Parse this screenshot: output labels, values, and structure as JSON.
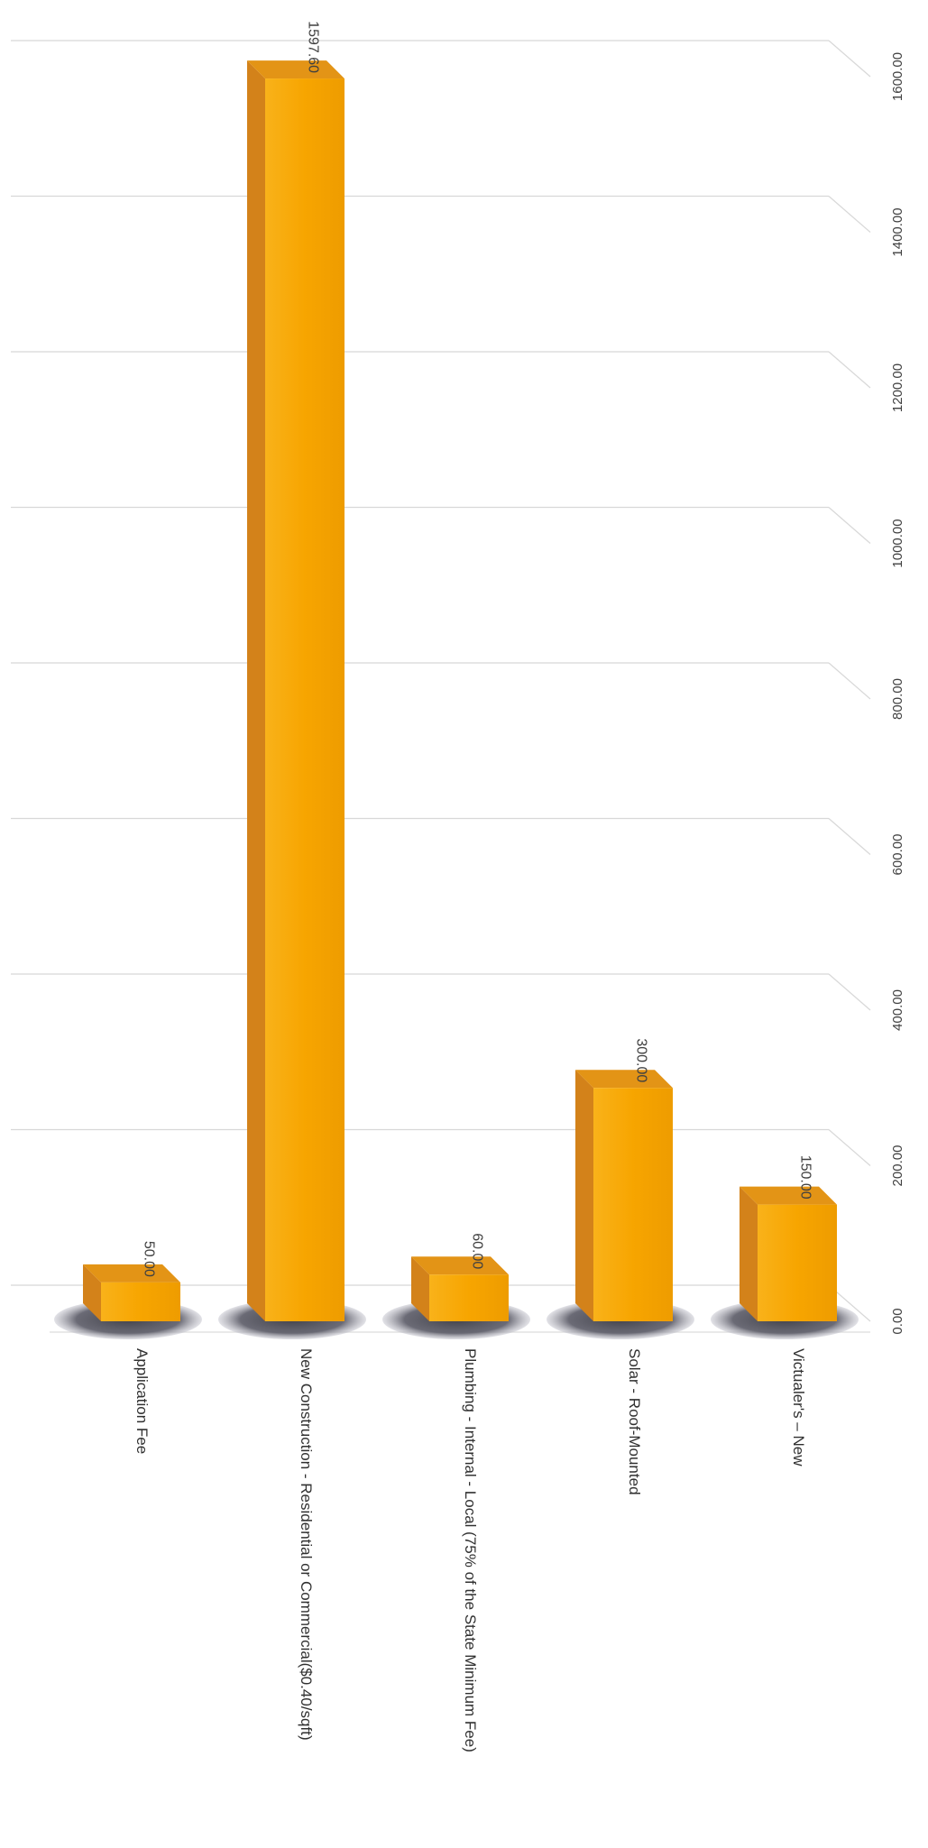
{
  "chart_data": {
    "type": "bar",
    "title": "",
    "xlabel": "",
    "ylabel": "",
    "categories": [
      "Application Fee",
      "New Construction - Residential or Commercial($0.40/sqft)",
      "Plumbing - Internal - Local (75% of the State Minimum Fee)",
      "Solar - Roof-Mounted",
      "Victualer's – New"
    ],
    "values": [
      50.0,
      1597.6,
      60.0,
      300.0,
      150.0
    ],
    "data_labels": [
      "50.00",
      "1597.60",
      "60.00",
      "300.00",
      "150.00"
    ],
    "ylim": [
      0,
      1600
    ],
    "ticks": [
      0,
      200,
      400,
      600,
      800,
      1000,
      1200,
      1400,
      1600
    ],
    "tick_labels": [
      "0.00",
      "200.00",
      "400.00",
      "600.00",
      "800.00",
      "1000.00",
      "1200.00",
      "1400.00",
      "1600.00"
    ],
    "grid": true,
    "legend": "none",
    "style": "3d-column",
    "orientation": "rotated-90-clockwise",
    "colors": {
      "bar_front": "#F7A500",
      "bar_side": "#D3821A",
      "bar_top": "#E39416",
      "shadow": "#5a5a66",
      "grid": "#d8d8d8",
      "text": "#404040"
    }
  }
}
